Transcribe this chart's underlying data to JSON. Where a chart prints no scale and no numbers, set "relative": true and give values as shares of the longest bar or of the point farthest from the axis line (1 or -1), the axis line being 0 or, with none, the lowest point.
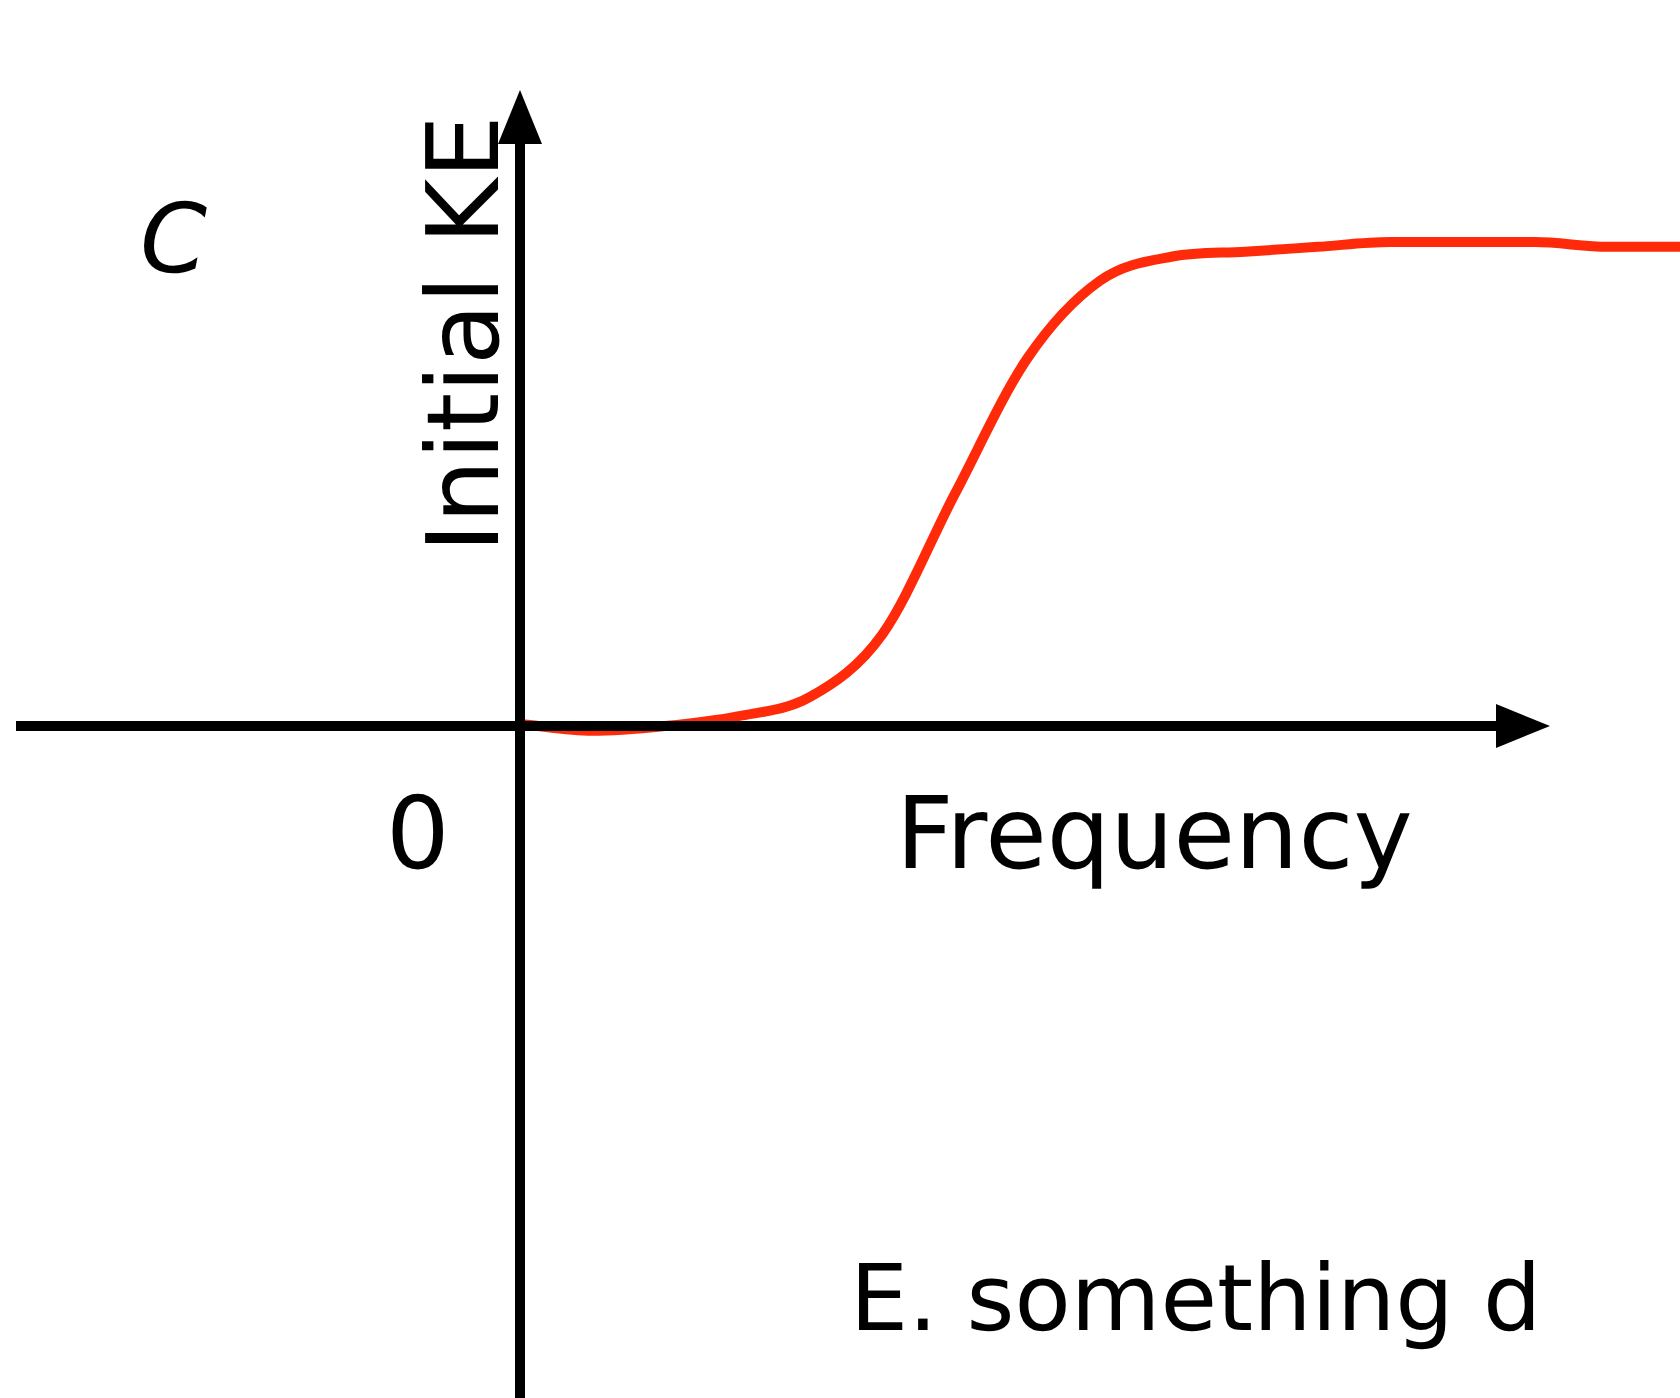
{
  "chart_data": {
    "type": "line",
    "relative": true,
    "xlabel": "Frequency",
    "ylabel": "Initial KE",
    "annotations": [
      "C",
      "0",
      "E. something d"
    ],
    "categories": [
      null,
      null,
      null,
      null,
      null,
      null,
      null,
      null,
      null,
      null,
      null,
      null,
      null,
      null,
      null,
      null,
      null
    ],
    "series": [
      {
        "color": "#ff2a0a",
        "values": [
          0.004,
          -0.01,
          0,
          0.02,
          0.06,
          0.19,
          0.48,
          0.76,
          0.92,
          0.97,
          0.98,
          0.99,
          1,
          1,
          1,
          0.99,
          0.99
        ]
      }
    ],
    "grid": false,
    "legend": false,
    "marker": "none",
    "line_style": "solid"
  }
}
